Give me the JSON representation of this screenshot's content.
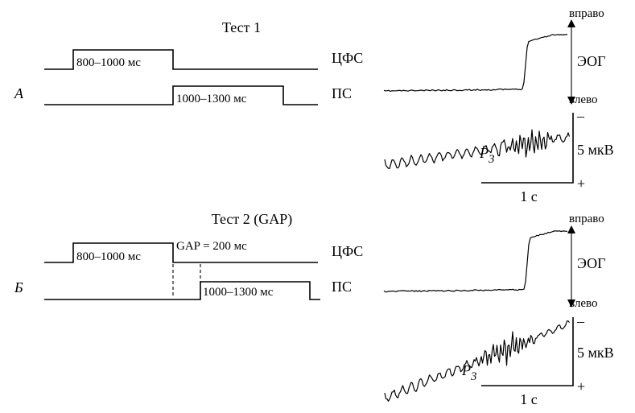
{
  "panelA": {
    "test_title": "Тест 1",
    "panel_letter": "А",
    "cfs_label": "ЦФС",
    "ps_label": "ПС",
    "cfs_duration": "800–1000 мс",
    "ps_duration": "1000–1300 мс"
  },
  "panelB": {
    "test_title": "Тест 2 (GAP)",
    "panel_letter": "Б",
    "cfs_label": "ЦФС",
    "ps_label": "ПС",
    "cfs_duration": "800–1000 мс",
    "gap_label": "GAP = 200 мс",
    "ps_duration": "1000–1300 мс"
  },
  "eog": {
    "label": "ЭОГ",
    "right": "вправо",
    "left": "влево"
  },
  "erp": {
    "component": "P",
    "component_sub": "3",
    "amplitude_scale": "5 мкВ",
    "time_scale": "1 с",
    "neg_sign": "–",
    "pos_sign": "+"
  }
}
